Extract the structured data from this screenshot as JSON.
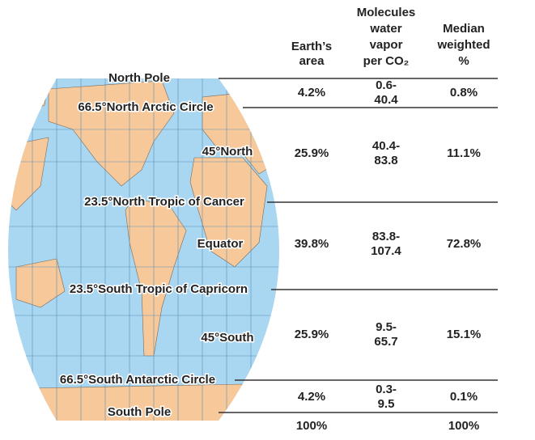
{
  "headers": [
    [
      "Earth’s",
      "area"
    ],
    [
      "Molecules",
      "water",
      "vapor",
      "per CO₂"
    ],
    [
      "Median",
      "weighted",
      "%"
    ]
  ],
  "latitudes": [
    "North Pole",
    "66.5°North  Arctic Circle",
    "45°North",
    "23.5°North  Tropic of Cancer",
    "Equator",
    "23.5°South  Tropic of Capricorn",
    "45°South",
    "66.5°South  Antarctic Circle",
    "South Pole"
  ],
  "rows": [
    {
      "area": "4.2%",
      "molecules": [
        "0.6-",
        "40.4"
      ],
      "median": "0.8%"
    },
    {
      "area": "25.9%",
      "molecules": [
        "40.4-",
        "83.8"
      ],
      "median": "11.1%"
    },
    {
      "area": "39.8%",
      "molecules": [
        "83.8-",
        "107.4"
      ],
      "median": "72.8%"
    },
    {
      "area": "25.9%",
      "molecules": [
        "9.5-",
        "65.7"
      ],
      "median": "15.1%"
    },
    {
      "area": "4.2%",
      "molecules": [
        "0.3-",
        "9.5"
      ],
      "median": "0.1%"
    }
  ],
  "totals": {
    "area": "100%",
    "median": "100%"
  }
}
